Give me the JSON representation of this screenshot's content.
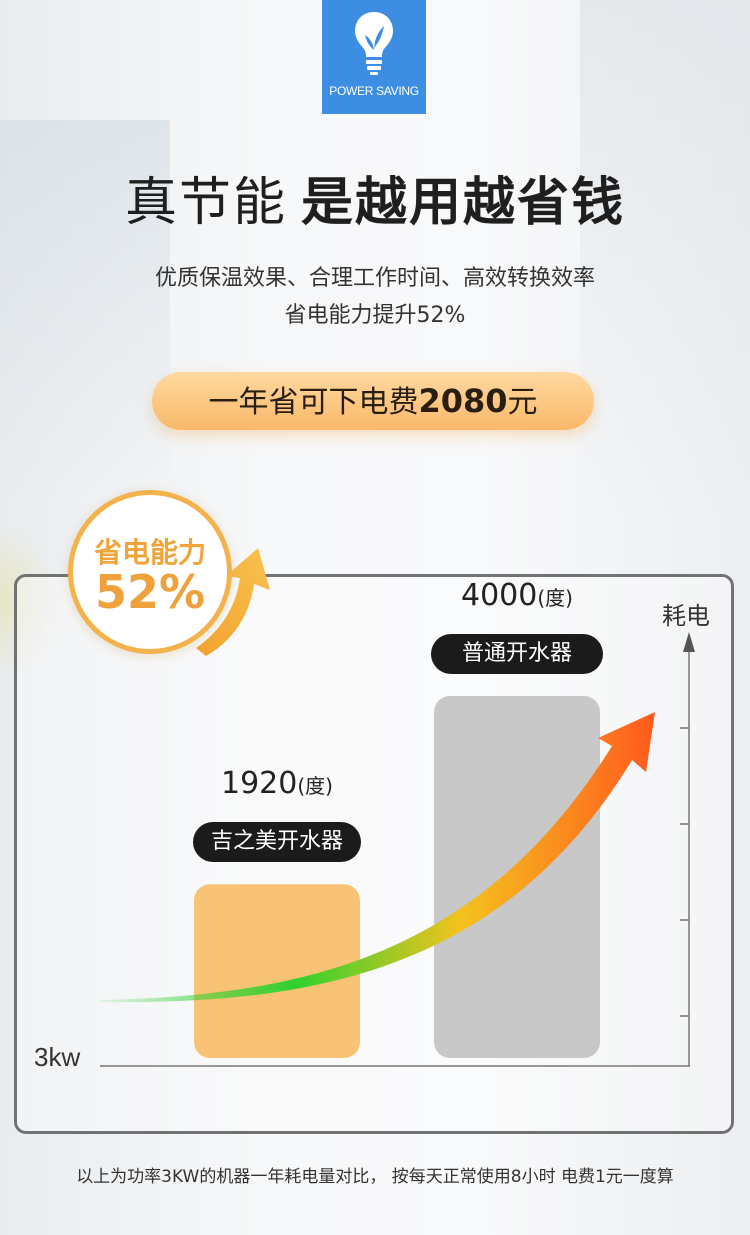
{
  "badge": {
    "icon": "bulb-leaf-icon",
    "text": "POWER SAVING"
  },
  "header": {
    "title_light": "真节能",
    "title_bold": "是越用越省钱",
    "subtitle_line1": "优质保温效果、合理工作时间、高效转换效率",
    "subtitle_line2": "省电能力提升52%"
  },
  "highlight": {
    "prefix": "一年省可下电费",
    "amount": "2080",
    "suffix": "元"
  },
  "saving_badge": {
    "label": "省电能力",
    "value": "52%"
  },
  "chart_data": {
    "type": "bar",
    "categories": [
      "吉之美开水器",
      "普通开水器"
    ],
    "values": [
      1920,
      4000
    ],
    "value_labels": [
      "1920",
      "4000"
    ],
    "unit_label": "(度)",
    "ylabel": "耗电",
    "xlabel": "3kw",
    "ylim": [
      0,
      4000
    ],
    "colors": [
      "#f8c374",
      "#c8c8c8"
    ],
    "arrow_colors": [
      "#2fd12f",
      "#f4c21e",
      "#ff5a1e"
    ]
  },
  "footnote": "以上为功率3KW的机器一年耗电量对比， 按每天正常使用8小时 电费1元一度算"
}
